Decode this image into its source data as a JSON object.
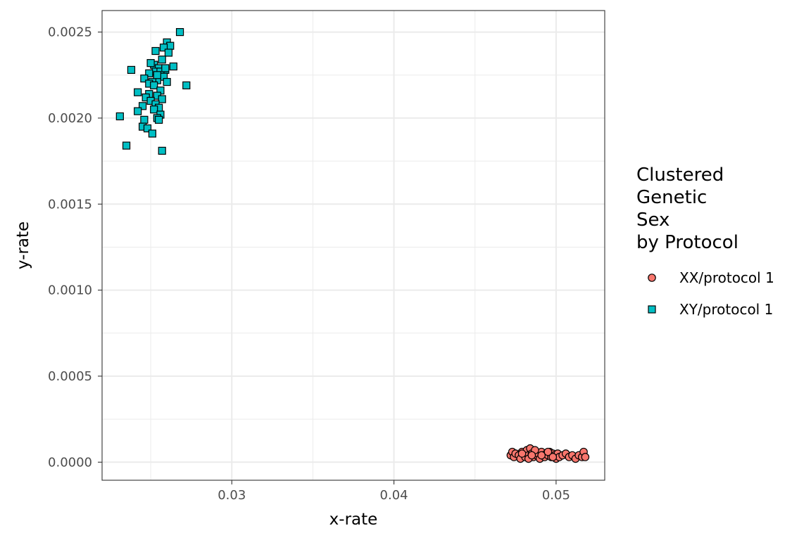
{
  "chart_data": {
    "type": "scatter",
    "title": "",
    "xlabel": "x-rate",
    "ylabel": "y-rate",
    "xlim": [
      0.022,
      0.053
    ],
    "ylim": [
      -0.000105,
      0.002625
    ],
    "x_ticks": [
      0.03,
      0.04,
      0.05
    ],
    "x_tick_labels": [
      "0.03",
      "0.04",
      "0.05"
    ],
    "y_ticks": [
      0.0,
      0.0005,
      0.001,
      0.0015,
      0.002,
      0.0025
    ],
    "y_tick_labels": [
      "0.0000",
      "0.0005",
      "0.0010",
      "0.0015",
      "0.0020",
      "0.0025"
    ],
    "grid": true,
    "legend": {
      "title_lines": [
        "Clustered",
        "Genetic",
        "Sex",
        "by Protocol"
      ],
      "placement": "right"
    },
    "series": [
      {
        "name": "XX/protocol 1",
        "marker": "circle",
        "color": "#F8766D",
        "x": [
          0.0472,
          0.0473,
          0.0474,
          0.0475,
          0.0477,
          0.0478,
          0.0479,
          0.048,
          0.0481,
          0.0482,
          0.0483,
          0.0484,
          0.0485,
          0.0486,
          0.0487,
          0.0488,
          0.0489,
          0.049,
          0.0491,
          0.0492,
          0.0493,
          0.0494,
          0.0495,
          0.0496,
          0.0497,
          0.0498,
          0.0499,
          0.05,
          0.0501,
          0.0502,
          0.0504,
          0.0506,
          0.0508,
          0.051,
          0.0512,
          0.0514,
          0.0516,
          0.0517,
          0.0518,
          0.0483,
          0.0487,
          0.0491,
          0.0495,
          0.0479,
          0.0498,
          0.0485
        ],
        "y": [
          4e-05,
          6e-05,
          3e-05,
          5e-05,
          4e-05,
          2e-05,
          6e-05,
          5e-05,
          3e-05,
          7e-05,
          4e-05,
          8e-05,
          5e-05,
          3e-05,
          6e-05,
          4e-05,
          5e-05,
          2e-05,
          6e-05,
          4e-05,
          3e-05,
          5e-05,
          4e-05,
          6e-05,
          3e-05,
          5e-05,
          4e-05,
          2e-05,
          5e-05,
          3e-05,
          4e-05,
          5e-05,
          3e-05,
          4e-05,
          2e-05,
          4e-05,
          3e-05,
          6e-05,
          3e-05,
          2e-05,
          7e-05,
          4e-05,
          6e-05,
          5e-05,
          3e-05,
          4e-05
        ]
      },
      {
        "name": "XY/protocol 1",
        "marker": "square",
        "color": "#00BFC4",
        "x": [
          0.0268,
          0.026,
          0.0262,
          0.0258,
          0.0253,
          0.0261,
          0.0257,
          0.0264,
          0.0252,
          0.0255,
          0.0259,
          0.0238,
          0.0253,
          0.0249,
          0.0256,
          0.0246,
          0.0258,
          0.0254,
          0.0251,
          0.026,
          0.0249,
          0.0252,
          0.0272,
          0.0242,
          0.0256,
          0.0249,
          0.0254,
          0.0247,
          0.0257,
          0.025,
          0.0253,
          0.0245,
          0.0255,
          0.0252,
          0.0242,
          0.0256,
          0.0231,
          0.0246,
          0.0254,
          0.0255,
          0.0245,
          0.0248,
          0.0251,
          0.0235,
          0.0257,
          0.025,
          0.0254,
          0.0259
        ],
        "y": [
          0.0025,
          0.00244,
          0.00242,
          0.00241,
          0.00239,
          0.00238,
          0.00234,
          0.0023,
          0.00231,
          0.00229,
          0.00228,
          0.00228,
          0.00227,
          0.00226,
          0.00227,
          0.00223,
          0.00224,
          0.00222,
          0.00221,
          0.00221,
          0.0022,
          0.00219,
          0.00219,
          0.00215,
          0.00216,
          0.00214,
          0.00213,
          0.00212,
          0.00211,
          0.0021,
          0.00208,
          0.00207,
          0.00206,
          0.00205,
          0.00204,
          0.00202,
          0.00201,
          0.00199,
          0.002,
          0.00199,
          0.00195,
          0.00194,
          0.00191,
          0.00184,
          0.00181,
          0.00232,
          0.00225,
          0.00229
        ]
      }
    ]
  }
}
